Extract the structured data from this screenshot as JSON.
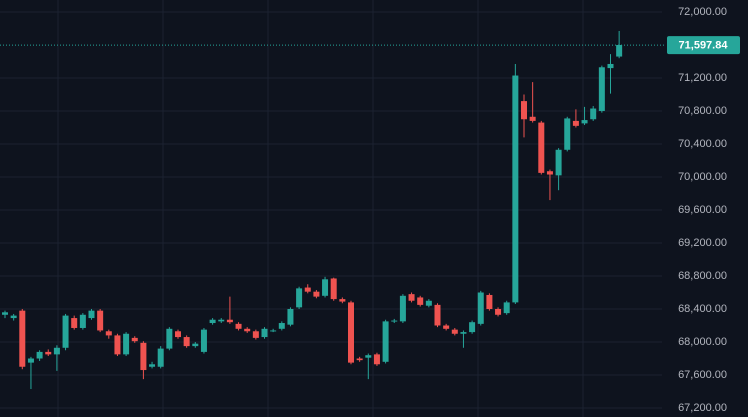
{
  "chart_data": {
    "type": "candlestick",
    "up_color": "#26a69a",
    "down_color": "#ef5350",
    "grid": true,
    "ylim": [
      67200,
      72000
    ],
    "yticks": [
      {
        "value": 67200,
        "label": "67,200.00"
      },
      {
        "value": 67600,
        "label": "67,600.00"
      },
      {
        "value": 68000,
        "label": "68,000.00"
      },
      {
        "value": 68400,
        "label": "68,400.00"
      },
      {
        "value": 68800,
        "label": "68,800.00"
      },
      {
        "value": 69200,
        "label": "69,200.00"
      },
      {
        "value": 69600,
        "label": "69,600.00"
      },
      {
        "value": 70000,
        "label": "70,000.00"
      },
      {
        "value": 70400,
        "label": "70,400.00"
      },
      {
        "value": 70800,
        "label": "70,800.00"
      },
      {
        "value": 71200,
        "label": "71,200.00"
      },
      {
        "value": 72000,
        "label": "72,000.00"
      }
    ],
    "last_price": {
      "value": 71597.84,
      "label": "71,597.84"
    },
    "candles": [
      [
        68330,
        68380,
        68290,
        68360
      ],
      [
        68290,
        68340,
        68260,
        68320
      ],
      [
        68380,
        68400,
        67670,
        67700
      ],
      [
        67750,
        67820,
        67430,
        67800
      ],
      [
        67800,
        67900,
        67770,
        67880
      ],
      [
        67880,
        67910,
        67830,
        67850
      ],
      [
        67850,
        67960,
        67650,
        67930
      ],
      [
        67930,
        68340,
        67900,
        68320
      ],
      [
        68290,
        68320,
        68150,
        68170
      ],
      [
        68170,
        68350,
        68150,
        68330
      ],
      [
        68290,
        68400,
        68270,
        68380
      ],
      [
        68380,
        68400,
        68120,
        68140
      ],
      [
        68130,
        68150,
        68040,
        68080
      ],
      [
        68080,
        68100,
        67830,
        67850
      ],
      [
        67850,
        68120,
        67830,
        68100
      ],
      [
        68050,
        68070,
        67990,
        68010
      ],
      [
        67990,
        68010,
        67550,
        67660
      ],
      [
        67700,
        67760,
        67680,
        67730
      ],
      [
        67700,
        67950,
        67680,
        67920
      ],
      [
        67920,
        68180,
        67900,
        68160
      ],
      [
        68130,
        68150,
        68040,
        68060
      ],
      [
        68060,
        68080,
        67930,
        67950
      ],
      [
        67950,
        68000,
        67930,
        67980
      ],
      [
        67880,
        68170,
        67860,
        68150
      ],
      [
        68230,
        68290,
        68210,
        68270
      ],
      [
        68250,
        68290,
        68230,
        68270
      ],
      [
        68270,
        68550,
        68220,
        68240
      ],
      [
        68220,
        68240,
        68140,
        68160
      ],
      [
        68160,
        68180,
        68110,
        68130
      ],
      [
        68130,
        68150,
        68030,
        68050
      ],
      [
        68060,
        68180,
        68040,
        68160
      ],
      [
        68130,
        68160,
        68120,
        68140
      ],
      [
        68160,
        68250,
        68140,
        68230
      ],
      [
        68210,
        68420,
        68190,
        68400
      ],
      [
        68420,
        68670,
        68400,
        68650
      ],
      [
        68660,
        68700,
        68590,
        68610
      ],
      [
        68610,
        68630,
        68530,
        68550
      ],
      [
        68560,
        68790,
        68540,
        68760
      ],
      [
        68770,
        68780,
        68500,
        68520
      ],
      [
        68520,
        68540,
        68470,
        68490
      ],
      [
        68480,
        68500,
        67730,
        67750
      ],
      [
        67800,
        67820,
        67760,
        67780
      ],
      [
        67810,
        67860,
        67550,
        67840
      ],
      [
        67850,
        67870,
        67710,
        67730
      ],
      [
        67760,
        68270,
        67740,
        68250
      ],
      [
        68250,
        68280,
        68230,
        68260
      ],
      [
        68250,
        68580,
        68230,
        68560
      ],
      [
        68580,
        68600,
        68480,
        68500
      ],
      [
        68540,
        68560,
        68430,
        68450
      ],
      [
        68440,
        68520,
        68420,
        68500
      ],
      [
        68450,
        68470,
        68180,
        68200
      ],
      [
        68200,
        68220,
        68140,
        68160
      ],
      [
        68150,
        68170,
        68080,
        68100
      ],
      [
        68100,
        68140,
        67930,
        68120
      ],
      [
        68120,
        68260,
        68100,
        68240
      ],
      [
        68220,
        68620,
        68200,
        68600
      ],
      [
        68570,
        68590,
        68380,
        68400
      ],
      [
        68400,
        68420,
        68310,
        68330
      ],
      [
        68350,
        68500,
        68330,
        68480
      ],
      [
        68480,
        71370,
        68460,
        71230
      ],
      [
        70920,
        71000,
        70480,
        70700
      ],
      [
        70730,
        71150,
        70660,
        70680
      ],
      [
        70660,
        70680,
        70030,
        70050
      ],
      [
        70070,
        70090,
        69720,
        70030
      ],
      [
        70020,
        70350,
        69840,
        70330
      ],
      [
        70330,
        70730,
        70310,
        70710
      ],
      [
        70680,
        70820,
        70600,
        70620
      ],
      [
        70650,
        70850,
        70630,
        70690
      ],
      [
        70700,
        70860,
        70680,
        70830
      ],
      [
        70800,
        71350,
        70780,
        71330
      ],
      [
        71320,
        71490,
        71010,
        71370
      ],
      [
        71460,
        71770,
        71440,
        71600
      ]
    ]
  }
}
